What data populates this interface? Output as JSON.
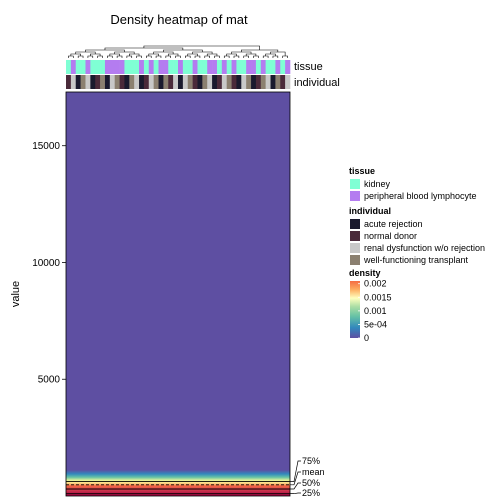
{
  "chart_data": {
    "type": "heatmap",
    "title": "Density heatmap of mat",
    "xlabel": "",
    "ylabel": "value",
    "ylim": [
      0,
      17300
    ],
    "yticks": [
      5000,
      10000,
      15000
    ],
    "n_columns": 46,
    "annotation_tracks": [
      "tissue",
      "individual"
    ],
    "tissue_categories": [
      "kidney",
      "peripheral blood lymphocyte"
    ],
    "individual_categories": [
      "acute rejection",
      "normal donor",
      "renal dysfunction w/o rejection",
      "well-functioning transplant"
    ],
    "tissue_sequence": [
      0,
      1,
      0,
      0,
      1,
      0,
      0,
      0,
      1,
      1,
      1,
      1,
      0,
      0,
      0,
      1,
      0,
      1,
      0,
      1,
      1,
      0,
      0,
      1,
      0,
      0,
      1,
      0,
      0,
      1,
      1,
      0,
      1,
      0,
      1,
      0,
      0,
      1,
      1,
      0,
      1,
      0,
      0,
      1,
      0,
      1
    ],
    "individual_sequence": [
      1,
      2,
      0,
      3,
      2,
      0,
      1,
      3,
      0,
      2,
      3,
      1,
      0,
      3,
      2,
      0,
      1,
      2,
      3,
      0,
      3,
      1,
      2,
      0,
      2,
      3,
      1,
      0,
      3,
      2,
      0,
      1,
      2,
      3,
      1,
      0,
      2,
      3,
      0,
      1,
      3,
      2,
      0,
      3,
      1,
      2
    ],
    "quantile_labels": [
      "75%",
      "mean",
      "50%",
      "25%"
    ],
    "quantile_values": [
      620,
      480,
      300,
      100
    ],
    "legend": {
      "tissue_title": "tissue",
      "individual_title": "individual",
      "density_title": "density",
      "density_ticks": [
        "0.002",
        "0.0015",
        "0.001",
        "5e-04",
        "0"
      ],
      "density_tick_values": [
        0.002,
        0.0015,
        0.001,
        0.0005,
        0
      ],
      "density_max": 0.0021
    },
    "colors": {
      "tissue": [
        "#7FFFD4",
        "#B47CF0"
      ],
      "individual": [
        "#1A1A2E",
        "#4A2A3A",
        "#C8C8C8",
        "#8B8070"
      ],
      "density_gradient": [
        "#5E4FA2",
        "#3288BD",
        "#66C2A5",
        "#ABDDA4",
        "#E6F598",
        "#FFFFBF",
        "#FEE08B",
        "#FDAE61",
        "#F46D43",
        "#D53E4F",
        "#9E0142"
      ]
    }
  }
}
